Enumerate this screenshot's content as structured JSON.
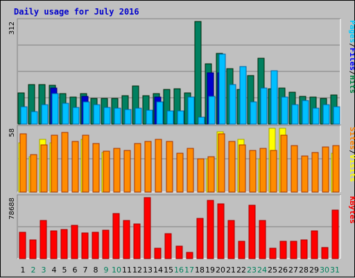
{
  "chart_data": {
    "type": "bar",
    "title": "Daily usage for July 2016",
    "panels": [
      {
        "name": "hits-files-pages",
        "max_label": "312",
        "ymax": 312,
        "side_legend": [
          {
            "text": "Pages",
            "color": "#00ccff"
          },
          {
            "text": "/",
            "color": "#000000"
          },
          {
            "text": "Files",
            "color": "#0000ff"
          },
          {
            "text": "/",
            "color": "#000000"
          },
          {
            "text": "Hits",
            "color": "#008040"
          }
        ],
        "series": [
          {
            "name": "Hits",
            "color": "#008060",
            "values": [
              95,
              121,
              121,
              117,
              92,
              83,
              93,
              77,
              77,
              77,
              87,
              115,
              87,
              92,
              106,
              108,
              95,
              312,
              183,
              215,
              168,
              106,
              147,
              201,
              107,
              109,
              97,
              84,
              82,
              79,
              88
            ]
          },
          {
            "name": "Files",
            "color": "#0000cc",
            "values": [
              0,
              0,
              0,
              110,
              0,
              0,
              84,
              0,
              0,
              0,
              0,
              0,
              0,
              82,
              0,
              0,
              0,
              0,
              155,
              156,
              0,
              0,
              0,
              0,
              0,
              0,
              0,
              0,
              0,
              0,
              0
            ]
          },
          {
            "name": "Pages",
            "color": "#00bfff",
            "values": [
              52,
              38,
              60,
              93,
              63,
              50,
              67,
              60,
              50,
              48,
              44,
              48,
              42,
              68,
              40,
              40,
              82,
              22,
              85,
              212,
              120,
              175,
              68,
              110,
              162,
              82,
              60,
              72,
              48,
              58,
              52
            ]
          }
        ]
      },
      {
        "name": "visits-sites",
        "max_label": "58",
        "ymax": 58,
        "side_legend": [
          {
            "text": "Sites",
            "color": "#ff8000"
          },
          {
            "text": "/",
            "color": "#000000"
          },
          {
            "text": "Visits",
            "color": "#ffff00"
          }
        ],
        "series": [
          {
            "name": "Visits",
            "color": "#ffff00",
            "values": [
              45,
              32,
              48,
              45,
              0,
              0,
              48,
              0,
              36,
              0,
              0,
              0,
              0,
              0,
              0,
              0,
              0,
              0,
              30,
              55,
              0,
              48,
              0,
              30,
              58,
              58,
              0,
              0,
              0,
              0,
              35
            ]
          },
          {
            "name": "Sites",
            "color": "#ff8c00",
            "values": [
              53,
              34,
              43,
              52,
              54,
              46,
              52,
              44,
              37,
              40,
              38,
              44,
              46,
              48,
              46,
              35,
              40,
              30,
              32,
              53,
              46,
              43,
              38,
              40,
              38,
              52,
              42,
              33,
              36,
              41,
              42
            ]
          }
        ]
      },
      {
        "name": "kbytes",
        "max_label": "78688",
        "ymax": 78688,
        "side_legend": [
          {
            "text": "KBytes",
            "color": "#ff0000"
          }
        ],
        "series": [
          {
            "name": "KBytes",
            "color": "#ff0000",
            "values": [
              34000,
              24000,
              49000,
              36000,
              38000,
              43000,
              33000,
              34000,
              37000,
              58000,
              49000,
              45000,
              78688,
              13000,
              32000,
              16000,
              8000,
              52000,
              75000,
              71000,
              49000,
              22000,
              69000,
              49000,
              13000,
              22000,
              22000,
              24000,
              36000,
              14000,
              63000
            ]
          }
        ]
      }
    ],
    "days": [
      "1",
      "2",
      "3",
      "4",
      "5",
      "6",
      "7",
      "8",
      "9",
      "10",
      "11",
      "12",
      "13",
      "14",
      "15",
      "16",
      "17",
      "18",
      "19",
      "20",
      "21",
      "22",
      "23",
      "24",
      "25",
      "26",
      "27",
      "28",
      "29",
      "30",
      "31"
    ],
    "weekend_days": [
      "2",
      "3",
      "9",
      "10",
      "16",
      "17",
      "23",
      "24",
      "30",
      "31"
    ],
    "day_color": "#000000",
    "weekend_color": "#00805c"
  }
}
